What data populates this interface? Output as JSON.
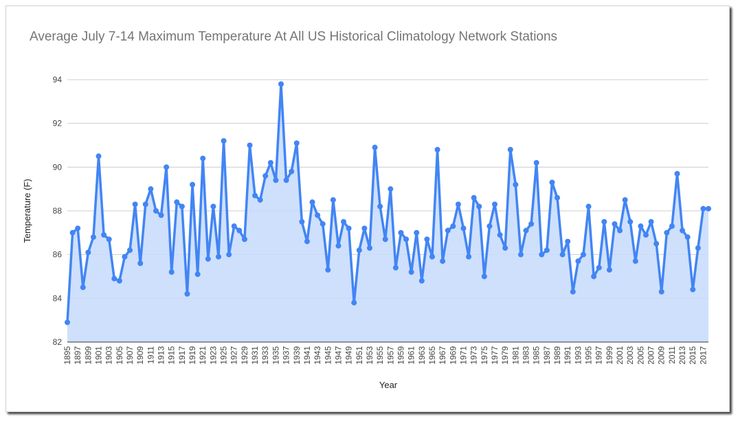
{
  "chart_data": {
    "type": "area",
    "title": "Average July 7-14 Maximum Temperature At All US Historical Climatology Network Stations",
    "xlabel": "Year",
    "ylabel": "Temperature (F)",
    "ylim": [
      82,
      94
    ],
    "yticks": [
      82,
      84,
      86,
      88,
      90,
      92,
      94
    ],
    "grid": true,
    "legend": "none",
    "colors": {
      "line": "#4285f4",
      "fill": "#c6dafc",
      "grid": "#cccccc",
      "axis": "#333333"
    },
    "x": [
      1895,
      1896,
      1897,
      1898,
      1899,
      1900,
      1901,
      1902,
      1903,
      1904,
      1905,
      1906,
      1907,
      1908,
      1909,
      1910,
      1911,
      1912,
      1913,
      1914,
      1915,
      1916,
      1917,
      1918,
      1919,
      1920,
      1921,
      1922,
      1923,
      1924,
      1925,
      1926,
      1927,
      1928,
      1929,
      1930,
      1931,
      1932,
      1933,
      1934,
      1935,
      1936,
      1937,
      1938,
      1939,
      1940,
      1941,
      1942,
      1943,
      1944,
      1945,
      1946,
      1947,
      1948,
      1949,
      1950,
      1951,
      1952,
      1953,
      1954,
      1955,
      1956,
      1957,
      1958,
      1959,
      1960,
      1961,
      1962,
      1963,
      1964,
      1965,
      1966,
      1967,
      1968,
      1969,
      1970,
      1971,
      1972,
      1973,
      1974,
      1975,
      1976,
      1977,
      1978,
      1979,
      1980,
      1981,
      1982,
      1983,
      1984,
      1985,
      1986,
      1987,
      1988,
      1989,
      1990,
      1991,
      1992,
      1993,
      1994,
      1995,
      1996,
      1997,
      1998,
      1999,
      2000,
      2001,
      2002,
      2003,
      2004,
      2005,
      2006,
      2007,
      2008,
      2009,
      2010,
      2011,
      2012,
      2013,
      2014,
      2015,
      2016,
      2017,
      2018
    ],
    "xtick_labels": [
      "1895",
      "1897",
      "1899",
      "1901",
      "1903",
      "1905",
      "1907",
      "1909",
      "1911",
      "1913",
      "1915",
      "1917",
      "1919",
      "1921",
      "1923",
      "1925",
      "1927",
      "1929",
      "1931",
      "1933",
      "1935",
      "1937",
      "1939",
      "1941",
      "1943",
      "1945",
      "1947",
      "1949",
      "1951",
      "1953",
      "1955",
      "1957",
      "1959",
      "1961",
      "1963",
      "1965",
      "1967",
      "1969",
      "1971",
      "1973",
      "1975",
      "1977",
      "1979",
      "1981",
      "1983",
      "1985",
      "1987",
      "1989",
      "1991",
      "1993",
      "1995",
      "1997",
      "1999",
      "2001",
      "2003",
      "2005",
      "2007",
      "2009",
      "2011",
      "2013",
      "2015",
      "2017"
    ],
    "series": [
      {
        "values": [
          82.9,
          87.0,
          87.2,
          84.5,
          86.1,
          86.8,
          90.5,
          86.9,
          86.7,
          84.9,
          84.8,
          85.9,
          86.2,
          88.3,
          85.6,
          88.3,
          89.0,
          88.0,
          87.8,
          90.0,
          85.2,
          88.4,
          88.2,
          84.2,
          89.2,
          85.1,
          90.4,
          85.8,
          88.2,
          85.9,
          91.2,
          86.0,
          87.3,
          87.1,
          86.7,
          91.0,
          88.7,
          88.5,
          89.6,
          90.2,
          89.4,
          93.8,
          89.4,
          89.8,
          91.1,
          87.5,
          86.6,
          88.4,
          87.8,
          87.4,
          85.3,
          88.5,
          86.4,
          87.5,
          87.2,
          83.8,
          86.2,
          87.2,
          86.3,
          90.9,
          88.2,
          86.7,
          89.0,
          85.4,
          87.0,
          86.7,
          85.2,
          87.0,
          84.8,
          86.7,
          85.9,
          90.8,
          85.7,
          87.1,
          87.3,
          88.3,
          87.2,
          85.9,
          88.6,
          88.2,
          85.0,
          87.3,
          88.3,
          86.9,
          86.3,
          90.8,
          89.2,
          86.0,
          87.1,
          87.4,
          90.2,
          86.0,
          86.2,
          89.3,
          88.6,
          86.0,
          86.6,
          84.3,
          85.7,
          86.0,
          88.2,
          85.0,
          85.4,
          87.5,
          85.3,
          87.4,
          87.1,
          88.5,
          87.5,
          85.7,
          87.3,
          86.9,
          87.5,
          86.5,
          84.3,
          87.0,
          87.3,
          89.7,
          87.1,
          86.8,
          84.4,
          86.3,
          88.1,
          88.1
        ]
      }
    ]
  }
}
